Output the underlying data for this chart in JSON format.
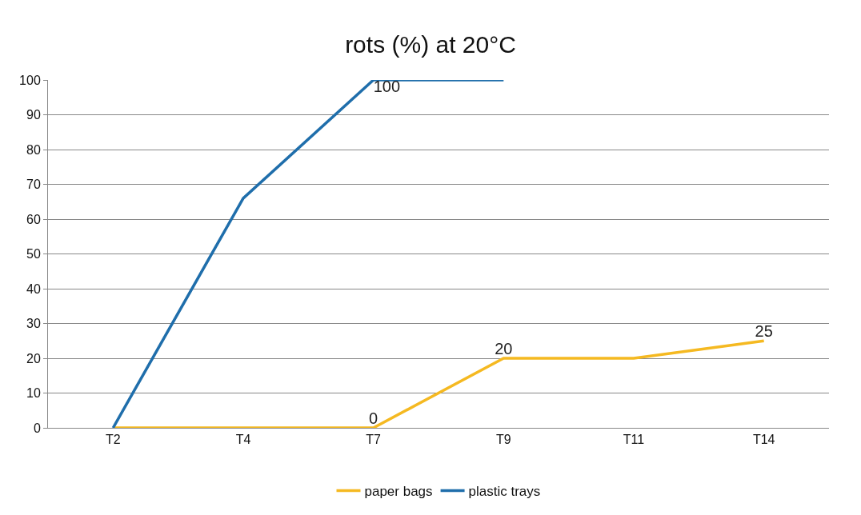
{
  "chart_data": {
    "type": "line",
    "title": "rots (%) at 20°C",
    "categories": [
      "T2",
      "T4",
      "T7",
      "T9",
      "T11",
      "T14"
    ],
    "series": [
      {
        "name": "paper bags",
        "color": "#f5b921",
        "values": [
          0,
          0,
          0,
          20,
          20,
          25
        ],
        "value_labels": [
          null,
          null,
          "0",
          "20",
          null,
          "25"
        ]
      },
      {
        "name": "plastic trays",
        "color": "#1f6eab",
        "values": [
          0,
          66,
          100,
          100,
          null,
          null
        ],
        "value_labels": [
          null,
          null,
          "100",
          null,
          null,
          null
        ]
      }
    ],
    "ylim": [
      0,
      100
    ],
    "yticks": [
      0,
      10,
      20,
      30,
      40,
      50,
      60,
      70,
      80,
      90,
      100
    ],
    "grid": "y",
    "legend": "bottom",
    "marker": "none",
    "line_style": "solid"
  }
}
